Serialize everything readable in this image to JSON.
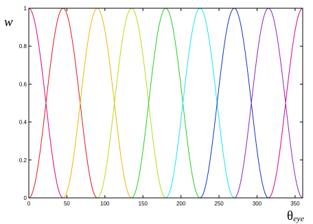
{
  "chart_data": {
    "type": "line",
    "title": "",
    "ylabel": "w",
    "xlabel": {
      "main": "θ",
      "subscript": "eye"
    },
    "xlim": [
      0,
      360
    ],
    "ylim": [
      0,
      1
    ],
    "grid": false,
    "x_ticks": [
      0,
      50,
      100,
      150,
      200,
      250,
      300,
      350
    ],
    "y_ticks": [
      0,
      0.2,
      0.4,
      0.6,
      0.8,
      1
    ],
    "tuning_curve": "w = cos^2((θ - center)·π/90) within ±45° of center, else 0 (circular)",
    "series": [
      {
        "center": 0,
        "color": "#e0209a"
      },
      {
        "center": 45,
        "color": "#e01818"
      },
      {
        "center": 90,
        "color": "#f0b400"
      },
      {
        "center": 135,
        "color": "#b8dc10"
      },
      {
        "center": 180,
        "color": "#20d020"
      },
      {
        "center": 225,
        "color": "#10e8e8"
      },
      {
        "center": 270,
        "color": "#1030c8"
      },
      {
        "center": 315,
        "color": "#8a20c8"
      },
      {
        "center": 360,
        "color": "#e0209a"
      }
    ]
  }
}
